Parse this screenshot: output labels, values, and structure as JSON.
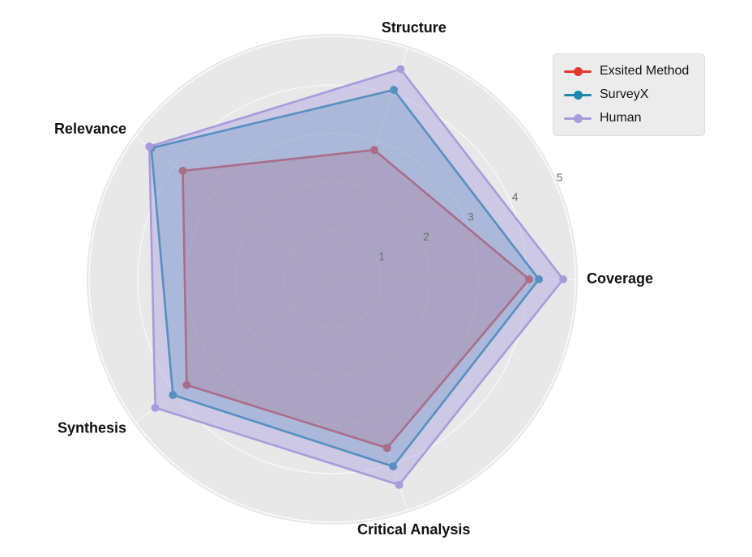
{
  "figure": {
    "background": "#ffffff"
  },
  "chart_data": {
    "type": "radar",
    "title": "",
    "categories": [
      "Structure",
      "Coverage",
      "Critical Analysis",
      "Synthesis",
      "Relevance"
    ],
    "axis_angles_deg": [
      72,
      0,
      288,
      216,
      144
    ],
    "series": [
      {
        "name": "Exsited Method",
        "color": "#e5372c",
        "fill_opacity": 0.28,
        "values": [
          2.8,
          4.05,
          3.65,
          3.7,
          3.8
        ]
      },
      {
        "name": "SurveyX",
        "color": "#1d87ae",
        "fill_opacity": 0.28,
        "values": [
          4.1,
          4.25,
          4.05,
          4.05,
          4.6
        ]
      },
      {
        "name": "Human",
        "color": "#a89bdc",
        "fill_opacity": 0.42,
        "values": [
          4.55,
          4.75,
          4.45,
          4.5,
          4.65
        ]
      }
    ],
    "r_ticks": [
      1,
      2,
      3,
      4,
      5
    ],
    "r_max": 5,
    "grid": true,
    "legend_position": "upper-right",
    "styles": {
      "polar_background": "#e8e8e8",
      "grid_color": "#ffffff",
      "tick_label_color": "#6e6e6e",
      "axis_label_color": "#111111"
    }
  }
}
